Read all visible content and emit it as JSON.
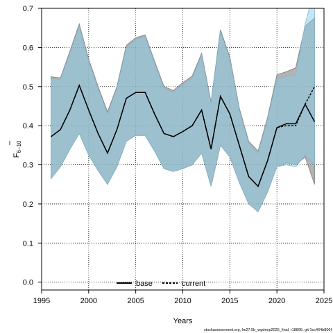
{
  "chart_data": {
    "type": "area",
    "xlabel": "Years",
    "ylabel": "F",
    "ylabel_subscript": "6−10",
    "xlim": [
      1995,
      2025
    ],
    "ylim": [
      -0.02,
      0.7
    ],
    "x_ticks": [
      1995,
      2000,
      2005,
      2010,
      2015,
      2020,
      2025
    ],
    "y_ticks": [
      0.0,
      0.1,
      0.2,
      0.3,
      0.4,
      0.5,
      0.6,
      0.7
    ],
    "grid": true,
    "legend_position": "bottom-center",
    "footer": "stockassessment.org, lm27.5b_wgdeep2025_final, r18895, git:1cc464b806f",
    "x": [
      1996,
      1997,
      1998,
      1999,
      2000,
      2001,
      2002,
      2003,
      2004,
      2005,
      2006,
      2007,
      2008,
      2009,
      2010,
      2011,
      2012,
      2013,
      2014,
      2015,
      2016,
      2017,
      2018,
      2019,
      2020,
      2021,
      2022,
      2023,
      2024
    ],
    "series": [
      {
        "name": "base",
        "color": "#000000",
        "band_color": "#999999",
        "values": [
          0.372,
          0.39,
          0.44,
          0.503,
          0.44,
          0.38,
          0.33,
          0.39,
          0.47,
          0.485,
          0.485,
          0.43,
          0.38,
          0.372,
          0.385,
          0.4,
          0.44,
          0.34,
          0.475,
          0.43,
          0.35,
          0.27,
          0.245,
          0.31,
          0.395,
          0.405,
          0.405,
          0.455,
          0.41
        ],
        "lower": [
          0.265,
          0.295,
          0.34,
          0.38,
          0.325,
          0.285,
          0.25,
          0.295,
          0.36,
          0.375,
          0.375,
          0.335,
          0.29,
          0.283,
          0.29,
          0.3,
          0.33,
          0.245,
          0.35,
          0.32,
          0.255,
          0.2,
          0.18,
          0.23,
          0.295,
          0.305,
          0.3,
          0.32,
          0.25
        ],
        "upper": [
          0.525,
          0.522,
          0.59,
          0.66,
          0.57,
          0.5,
          0.435,
          0.5,
          0.605,
          0.625,
          0.632,
          0.565,
          0.5,
          0.49,
          0.51,
          0.527,
          0.585,
          0.46,
          0.645,
          0.575,
          0.445,
          0.36,
          0.335,
          0.42,
          0.53,
          0.538,
          0.548,
          0.655,
          0.675
        ]
      },
      {
        "name": "current",
        "color": "#000000",
        "band_color": "#87CEEB",
        "values": [
          0.372,
          0.39,
          0.44,
          0.503,
          0.44,
          0.38,
          0.33,
          0.39,
          0.47,
          0.485,
          0.485,
          0.43,
          0.38,
          0.372,
          0.385,
          0.4,
          0.44,
          0.34,
          0.475,
          0.43,
          0.35,
          0.27,
          0.245,
          0.31,
          0.395,
          0.4,
          0.4,
          0.455,
          0.5
        ],
        "lower": [
          0.265,
          0.295,
          0.34,
          0.38,
          0.325,
          0.285,
          0.25,
          0.295,
          0.36,
          0.375,
          0.375,
          0.335,
          0.29,
          0.283,
          0.29,
          0.3,
          0.33,
          0.245,
          0.35,
          0.32,
          0.255,
          0.2,
          0.18,
          0.23,
          0.295,
          0.3,
          0.295,
          0.325,
          0.3
        ],
        "upper": [
          0.52,
          0.518,
          0.585,
          0.655,
          0.565,
          0.495,
          0.43,
          0.495,
          0.6,
          0.62,
          0.628,
          0.56,
          0.495,
          0.485,
          0.505,
          0.522,
          0.58,
          0.455,
          0.64,
          0.57,
          0.44,
          0.355,
          0.33,
          0.415,
          0.52,
          0.525,
          0.53,
          0.66,
          0.75
        ]
      }
    ]
  }
}
